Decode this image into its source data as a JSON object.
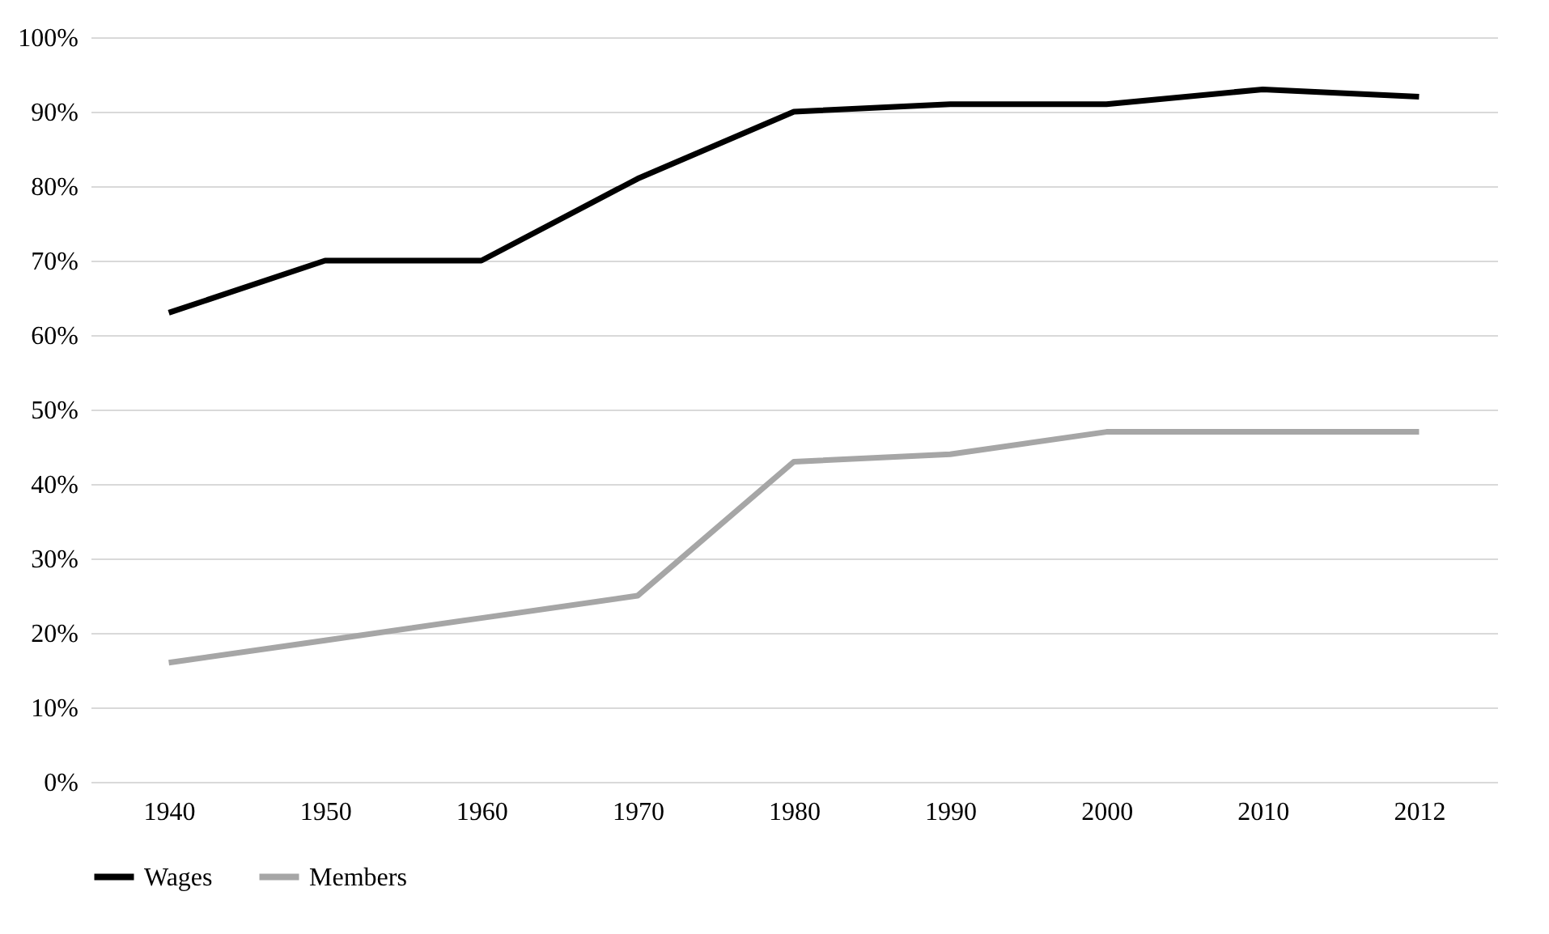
{
  "chart_data": {
    "type": "line",
    "categories": [
      "1940",
      "1950",
      "1960",
      "1970",
      "1980",
      "1990",
      "2000",
      "2010",
      "2012"
    ],
    "series": [
      {
        "name": "Wages",
        "color": "#000000",
        "values": [
          63,
          70,
          70,
          81,
          90,
          91,
          91,
          93,
          92
        ]
      },
      {
        "name": "Members",
        "color": "#a6a6a6",
        "values": [
          16,
          19,
          22,
          25,
          43,
          44,
          47,
          47,
          47
        ]
      }
    ],
    "ylim": [
      0,
      100
    ],
    "yticks": [
      {
        "value": 0,
        "label": "0%"
      },
      {
        "value": 10,
        "label": "10%"
      },
      {
        "value": 20,
        "label": "20%"
      },
      {
        "value": 30,
        "label": "30%"
      },
      {
        "value": 40,
        "label": "40%"
      },
      {
        "value": 50,
        "label": "50%"
      },
      {
        "value": 60,
        "label": "60%"
      },
      {
        "value": 70,
        "label": "70%"
      },
      {
        "value": 80,
        "label": "80%"
      },
      {
        "value": 90,
        "label": "90%"
      },
      {
        "value": 100,
        "label": "100%"
      }
    ],
    "grid": "y",
    "legend": "bottom",
    "marker": "none",
    "line_style": "solid"
  }
}
